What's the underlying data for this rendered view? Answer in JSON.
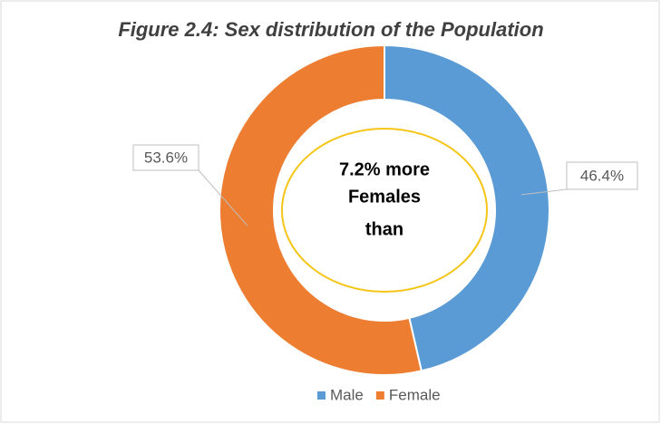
{
  "chart_data": {
    "type": "donut",
    "title": "Figure 2.4:  Sex distribution of the Population",
    "categories": [
      "Male",
      "Female"
    ],
    "values": [
      46.4,
      53.6
    ],
    "value_labels": [
      "46.4%",
      "53.6%"
    ],
    "colors": [
      "#5b9bd5",
      "#ed7d31"
    ],
    "annotation": [
      "7.2% more",
      "Females",
      "than"
    ],
    "legend": "bottom"
  }
}
